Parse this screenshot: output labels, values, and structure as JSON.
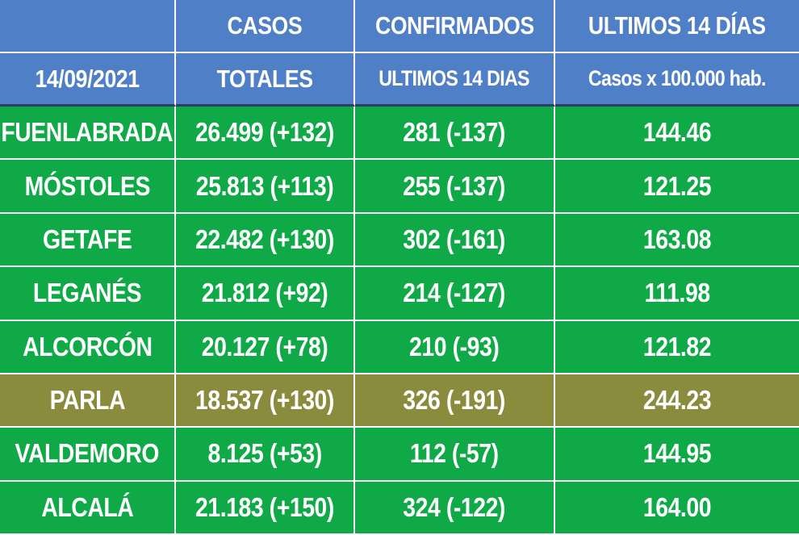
{
  "header": {
    "row1": [
      "",
      "CASOS",
      "CONFIRMADOS",
      "ULTIMOS 14 DÍAS"
    ],
    "row2": [
      "14/09/2021",
      "TOTALES",
      "ULTIMOS 14 DIAS",
      "Casos x 100.000 hab."
    ]
  },
  "rows": [
    {
      "city": "FUENLABRADA",
      "totales": "26.499 (+132)",
      "ultimos": "281 (-137)",
      "tasa": "144.46",
      "highlight": false
    },
    {
      "city": "MÓSTOLES",
      "totales": "25.813 (+113)",
      "ultimos": "255 (-137)",
      "tasa": "121.25",
      "highlight": false
    },
    {
      "city": "GETAFE",
      "totales": "22.482 (+130)",
      "ultimos": "302 (-161)",
      "tasa": "163.08",
      "highlight": false
    },
    {
      "city": "LEGANÉS",
      "totales": "21.812 (+92)",
      "ultimos": "214 (-127)",
      "tasa": "111.98",
      "highlight": false
    },
    {
      "city": "ALCORCÓN",
      "totales": "20.127 (+78)",
      "ultimos": "210 (-93)",
      "tasa": "121.82",
      "highlight": false
    },
    {
      "city": "PARLA",
      "totales": "18.537 (+130)",
      "ultimos": "326 (-191)",
      "tasa": "244.23",
      "highlight": true
    },
    {
      "city": "VALDEMORO",
      "totales": "8.125 (+53)",
      "ultimos": "112 (-57)",
      "tasa": "144.95",
      "highlight": false
    },
    {
      "city": "ALCALÁ",
      "totales": "21.183 (+150)",
      "ultimos": "324 (-122)",
      "tasa": "164.00",
      "highlight": false
    }
  ],
  "colors": {
    "header_bg": "#4f7fc7",
    "row_bg": "#0faa47",
    "highlight_bg": "#8a8b3c",
    "text": "#ffffff"
  }
}
